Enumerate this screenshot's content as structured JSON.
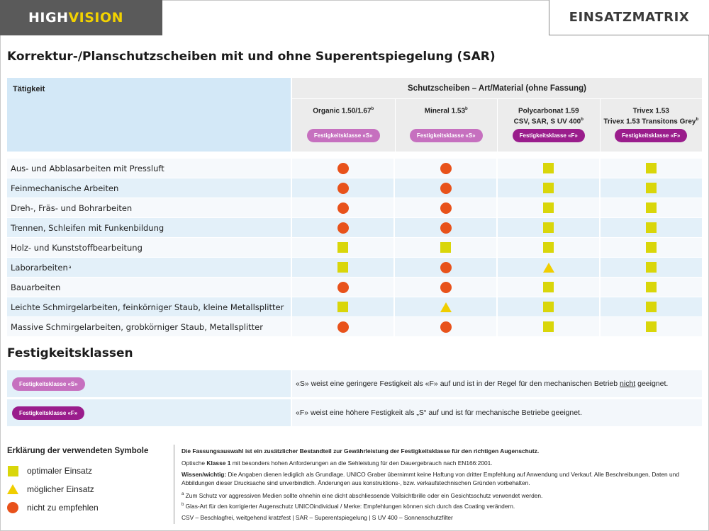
{
  "header": {
    "brand_part1": "HIGH",
    "brand_part2": "VISION",
    "badge": "EINSATZMATRIX",
    "brand_colors": {
      "dark": "#5a5a5a",
      "yellow": "#f2d200"
    }
  },
  "page_title": "Korrektur-/Planschutzscheiben mit und ohne Superentspiegelung (SAR)",
  "matrix": {
    "activity_header": "Tätigkeit",
    "group_header": "Schutzscheiben – Art/Material (ohne Fassung)",
    "columns": [
      {
        "label_line1": "Organic 1.50/1.67",
        "label_sup": "b",
        "label_line2": "",
        "label_line2_sup": "",
        "class_label": "Festigkeitsklasse «S»",
        "class": "s"
      },
      {
        "label_line1": "Mineral 1.53",
        "label_sup": "b",
        "label_line2": "",
        "label_line2_sup": "",
        "class_label": "Festigkeitsklasse «S»",
        "class": "s"
      },
      {
        "label_line1": "Polycarbonat 1.59",
        "label_sup": "",
        "label_line2": "CSV, SAR, S UV 400",
        "label_line2_sup": "b",
        "class_label": "Festigkeitsklasse «F»",
        "class": "f"
      },
      {
        "label_line1": "Trivex 1.53",
        "label_sup": "",
        "label_line2": "Trivex 1.53 Transitons Grey",
        "label_line2_sup": "b",
        "class_label": "Festigkeitsklasse «F»",
        "class": "f"
      }
    ],
    "rows": [
      {
        "activity": "Aus- und Abblasarbeiten mit Pressluft",
        "sup": "",
        "ratings": [
          "not-recommended",
          "not-recommended",
          "optimal",
          "optimal"
        ]
      },
      {
        "activity": "Feinmechanische Arbeiten",
        "sup": "",
        "ratings": [
          "not-recommended",
          "not-recommended",
          "optimal",
          "optimal"
        ]
      },
      {
        "activity": "Dreh-, Fräs- und Bohrarbeiten",
        "sup": "",
        "ratings": [
          "not-recommended",
          "not-recommended",
          "optimal",
          "optimal"
        ]
      },
      {
        "activity": "Trennen, Schleifen mit Funkenbildung",
        "sup": "",
        "ratings": [
          "not-recommended",
          "not-recommended",
          "optimal",
          "optimal"
        ]
      },
      {
        "activity": "Holz- und Kunststoffbearbeitung",
        "sup": "",
        "ratings": [
          "optimal",
          "optimal",
          "optimal",
          "optimal"
        ]
      },
      {
        "activity": "Laborarbeiten",
        "sup": "a",
        "ratings": [
          "optimal",
          "not-recommended",
          "possible",
          "optimal"
        ]
      },
      {
        "activity": "Bauarbeiten",
        "sup": "",
        "ratings": [
          "not-recommended",
          "not-recommended",
          "optimal",
          "optimal"
        ]
      },
      {
        "activity": "Leichte Schmirgelarbeiten, feinkörniger Staub, kleine Metallsplitter",
        "sup": "",
        "ratings": [
          "optimal",
          "possible",
          "optimal",
          "optimal"
        ]
      },
      {
        "activity": "Massive Schmirgelarbeiten, grobkörniger Staub, Metallsplitter",
        "sup": "",
        "ratings": [
          "not-recommended",
          "not-recommended",
          "optimal",
          "optimal"
        ]
      }
    ]
  },
  "festigkeit": {
    "title": "Festigkeitsklassen",
    "rows": [
      {
        "class_label": "Festigkeitsklasse «S»",
        "class": "s",
        "text_before": "«S» weist eine geringere Festigkeit als «F» auf und ist in der Regel für den mechanischen Betrieb ",
        "text_underlined": "nicht",
        "text_after": " geeignet."
      },
      {
        "class_label": "Festigkeitsklasse «F»",
        "class": "f",
        "text_before": "«F» weist eine höhere Festigkeit als „S“ auf und ist für mechanische Betriebe geeignet.",
        "text_underlined": "",
        "text_after": ""
      }
    ]
  },
  "legend": {
    "title": "Erklärung der verwendeten Symbole",
    "items": [
      {
        "symbol": "optimal",
        "label": "optimaler Einsatz"
      },
      {
        "symbol": "possible",
        "label": "möglicher Einsatz"
      },
      {
        "symbol": "not-recommended",
        "label": "nicht zu empfehlen"
      }
    ],
    "colors": {
      "optimal": "#d9d60a",
      "possible": "#f0ce00",
      "not-recommended": "#e8521b"
    }
  },
  "notes": {
    "headline": "Die Fassungsauswahl ist ein zusätzlicher Bestandteil zur Gewährleistung der Festigkeitsklasse für den richtigen Augenschutz.",
    "optik_before": "Optische ",
    "optik_bold": "Klasse 1",
    "optik_after": " mit besonders hohen Anforderungen an die Sehleistung für den Dauergebrauch nach EN166:2001.",
    "wissen_bold": "Wissen/wichtig:",
    "wissen_text": " Die Angaben dienen lediglich als Grundlage. UNICO Graber übernimmt keine Haftung von dritter Empfehlung auf Anwendung und Verkauf. Alle Beschreibungen, Daten und Abbildungen dieser Drucksache sind unverbindlich. Änderungen aus konstruktions-, bzw. verkaufstechnischen Gründen vorbehalten.",
    "footnote_a_mark": "a",
    "footnote_a": " Zum Schutz vor aggressiven Medien sollte ohnehin eine dicht abschliessende Vollsichtbrille oder ein Gesichtsschutz verwendet werden.",
    "footnote_b_mark": "b",
    "footnote_b": " Glas-Art für den korrigierter Augenschutz UNICOindividual / Merke: Empfehlungen können sich durch das Coating verändern.",
    "abbreviations": "CSV – Beschlagfrei, weitgehend kratzfest | SAR – Superentspiegelung | S UV 400 – Sonnenschutzfilter"
  }
}
